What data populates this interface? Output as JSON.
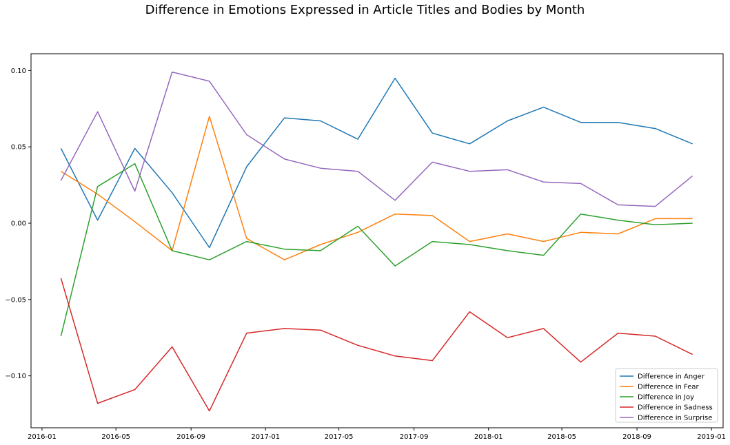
{
  "chart_data": {
    "type": "line",
    "title": "Difference in Emotions Expressed in Article Titles and Bodies by Month",
    "xlabel": "",
    "ylabel": "",
    "x": [
      "2016-02-01",
      "2016-04-01",
      "2016-06-01",
      "2016-08-01",
      "2016-10-01",
      "2016-12-01",
      "2017-02-01",
      "2017-04-01",
      "2017-06-01",
      "2017-08-01",
      "2017-10-01",
      "2017-12-01",
      "2018-02-01",
      "2018-04-01",
      "2018-06-01",
      "2018-08-01",
      "2018-10-01",
      "2018-12-01"
    ],
    "xticks": [
      "2016-01",
      "2016-05",
      "2016-09",
      "2017-01",
      "2017-05",
      "2017-09",
      "2018-01",
      "2018-05",
      "2018-09",
      "2019-01"
    ],
    "yticks": [
      "0.10",
      "0.05",
      "0.00",
      "−0.05",
      "−0.10"
    ],
    "ylim": [
      -0.134,
      0.111
    ],
    "xlim": [
      "2015-12-14",
      "2019-01-20"
    ],
    "grid": false,
    "legend_position": "lower-right",
    "series": [
      {
        "name": "Difference in Anger",
        "color": "#1f77b4",
        "values": [
          0.049,
          0.002,
          0.049,
          0.02,
          -0.016,
          0.037,
          0.069,
          0.067,
          0.055,
          0.095,
          0.059,
          0.052,
          0.067,
          0.076,
          0.066,
          0.066,
          0.062,
          0.052
        ]
      },
      {
        "name": "Difference in Fear",
        "color": "#ff7f0e",
        "values": [
          0.034,
          0.019,
          0.001,
          -0.018,
          0.07,
          -0.01,
          -0.024,
          -0.014,
          -0.006,
          0.006,
          0.005,
          -0.012,
          -0.007,
          -0.012,
          -0.006,
          -0.007,
          0.003,
          0.003
        ]
      },
      {
        "name": "Difference in Joy",
        "color": "#2ca02c",
        "values": [
          -0.074,
          0.024,
          0.039,
          -0.018,
          -0.024,
          -0.012,
          -0.017,
          -0.018,
          -0.002,
          -0.028,
          -0.012,
          -0.014,
          -0.018,
          -0.021,
          0.006,
          0.002,
          -0.001,
          0.0
        ]
      },
      {
        "name": "Difference in Sadness",
        "color": "#d62728",
        "values": [
          -0.036,
          -0.118,
          -0.109,
          -0.081,
          -0.123,
          -0.072,
          -0.069,
          -0.07,
          -0.08,
          -0.087,
          -0.09,
          -0.058,
          -0.075,
          -0.069,
          -0.091,
          -0.072,
          -0.074,
          -0.086
        ]
      },
      {
        "name": "Difference in Surprise",
        "color": "#9467bd",
        "values": [
          0.028,
          0.073,
          0.021,
          0.099,
          0.093,
          0.058,
          0.042,
          0.036,
          0.034,
          0.015,
          0.04,
          0.034,
          0.035,
          0.027,
          0.026,
          0.012,
          0.011,
          0.031
        ]
      }
    ]
  }
}
